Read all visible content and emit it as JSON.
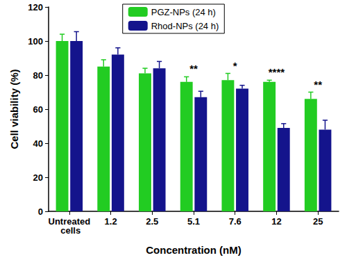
{
  "chart_data": {
    "type": "bar",
    "categories": [
      "Untreated cells",
      "1.2",
      "2.5",
      "5.1",
      "7.6",
      "12",
      "25"
    ],
    "series": [
      {
        "name": "PGZ-NPs (24 h)",
        "color": "#22cc22",
        "values": [
          100,
          85,
          81,
          76,
          77,
          76,
          66
        ],
        "errors": [
          4,
          4,
          3,
          3,
          4,
          1,
          4
        ]
      },
      {
        "name": "Rhod-NPs (24 h)",
        "color": "#14148c",
        "values": [
          100,
          92,
          84,
          67,
          72,
          49,
          48
        ],
        "errors": [
          5.5,
          4,
          4,
          3.5,
          2,
          2.5,
          5.5
        ]
      }
    ],
    "x_label": "Concentration (nM)",
    "y_label": "Cell viability (%)",
    "ylim": [
      0,
      120
    ],
    "yticks": [
      0,
      20,
      40,
      60,
      80,
      100,
      120
    ],
    "grid": false,
    "legend": "top",
    "annotations": [
      {
        "category": "5.1",
        "text": "**"
      },
      {
        "category": "7.6",
        "text": "*"
      },
      {
        "category": "12",
        "text": "****"
      },
      {
        "category": "25",
        "text": "**"
      }
    ]
  }
}
